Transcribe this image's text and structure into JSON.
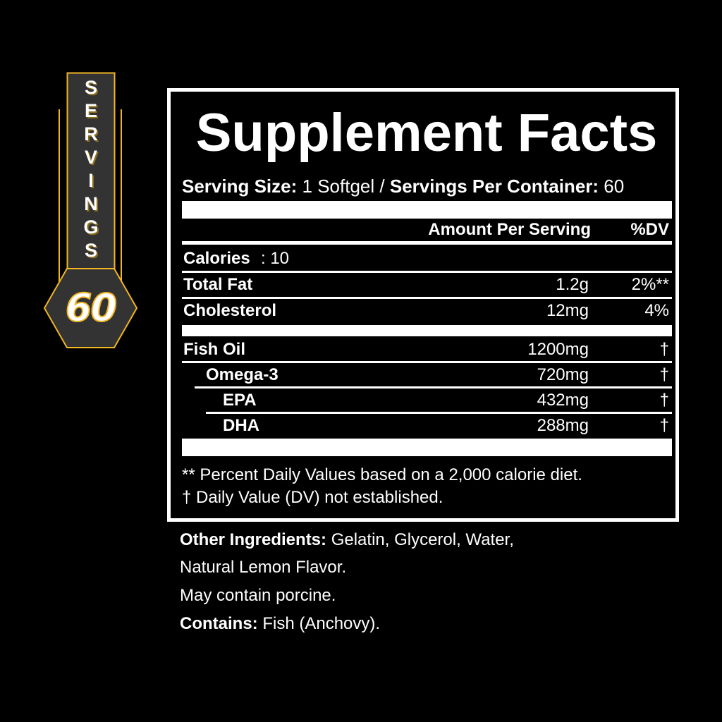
{
  "badge": {
    "letters": [
      "S",
      "E",
      "R",
      "V",
      "I",
      "N",
      "G",
      "S"
    ],
    "count": "60",
    "colors": {
      "gold": "#f2b523",
      "fill": "#333333"
    }
  },
  "label": {
    "title": "Supplement Facts",
    "serving_size_label": "Serving Size:",
    "serving_size_value": "1 Softgel",
    "separator": "/",
    "servings_label": "Servings Per Container:",
    "servings_value": "60",
    "header_amount": "Amount Per Serving",
    "header_dv": "%DV",
    "calories_label": "Calories",
    "calories_value": ": 10",
    "rows": [
      {
        "name": "Total Fat",
        "amount": "1.2g",
        "dv": "2%**"
      },
      {
        "name": "Cholesterol",
        "amount": "12mg",
        "dv": "4%"
      },
      {
        "name": "Fish Oil",
        "amount": "1200mg",
        "dv": "†"
      },
      {
        "name": "Omega-3",
        "amount": "720mg",
        "dv": "†"
      },
      {
        "name": "EPA",
        "amount": "432mg",
        "dv": "†"
      },
      {
        "name": "DHA",
        "amount": "288mg",
        "dv": "†"
      }
    ],
    "footnotes": [
      "** Percent Daily Values based on a 2,000 calorie diet.",
      "† Daily Value (DV) not established."
    ]
  },
  "other": {
    "ingredients_label": "Other Ingredients:",
    "ingredients_value": " Gelatin, Glycerol, Water,",
    "ingredients_line2": "Natural Lemon Flavor.",
    "porcine": "May contain porcine.",
    "contains_label": "Contains:",
    "contains_value": " Fish (Anchovy)."
  }
}
